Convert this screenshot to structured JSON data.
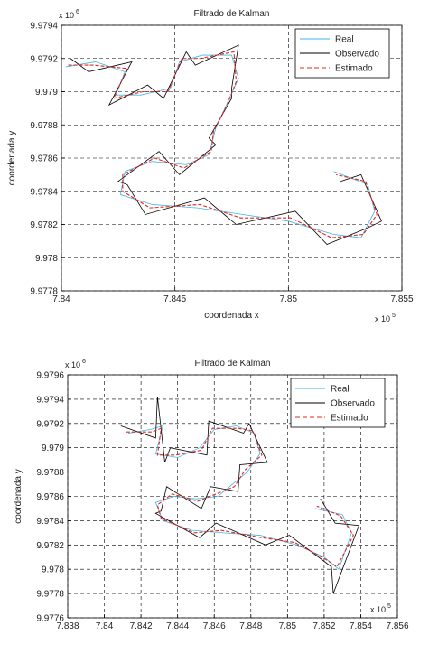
{
  "chart_data": [
    {
      "type": "line",
      "title": "Filtrado de Kalman",
      "xlabel": "coordenada x",
      "ylabel": "coordenada y",
      "x_multiplier": {
        "base": "x 10",
        "exponent": "5"
      },
      "y_multiplier": {
        "base": "x 10",
        "exponent": "6"
      },
      "xlim": [
        7.84,
        7.855
      ],
      "xticks": [
        7.84,
        7.845,
        7.85,
        7.855
      ],
      "ylim": [
        9.9778,
        9.9794
      ],
      "yticks": [
        9.9778,
        9.978,
        9.9782,
        9.9784,
        9.9786,
        9.9788,
        9.979,
        9.9792,
        9.9794
      ],
      "grid": true,
      "legend": "upper right",
      "series": [
        {
          "name": "Real",
          "color": "#3fb6e8",
          "linestyle": "solid",
          "x": [
            7.8402,
            7.8415,
            7.8428,
            7.8424,
            7.8435,
            7.8448,
            7.8452,
            7.8462,
            7.8475,
            7.8478,
            7.8472,
            7.8468,
            7.8465,
            7.8455,
            7.844,
            7.8428,
            7.8426,
            7.844,
            7.846,
            7.848,
            7.85,
            7.852,
            7.8532,
            7.8538,
            7.8535,
            7.852
          ],
          "values": [
            9.97915,
            9.97918,
            9.97912,
            9.97898,
            9.97898,
            9.97902,
            9.97918,
            9.97922,
            9.97922,
            9.97908,
            9.9789,
            9.97878,
            9.97862,
            9.97856,
            9.97858,
            9.97852,
            9.97838,
            9.97832,
            9.9783,
            9.97826,
            9.97822,
            9.97814,
            9.97812,
            9.97828,
            9.97844,
            9.97852
          ]
        },
        {
          "name": "Observado",
          "color": "#000000",
          "linestyle": "solid",
          "x": [
            7.8404,
            7.8412,
            7.8431,
            7.8421,
            7.8438,
            7.8445,
            7.8455,
            7.8459,
            7.8478,
            7.8475,
            7.8475,
            7.8465,
            7.8468,
            7.8452,
            7.8443,
            7.8425,
            7.8429,
            7.8437,
            7.8463,
            7.8477,
            7.8503,
            7.8517,
            7.8535,
            7.8541,
            7.8532,
            7.8523
          ],
          "values": [
            9.9792,
            9.97912,
            9.97918,
            9.97892,
            9.97904,
            9.97896,
            9.97924,
            9.97916,
            9.97928,
            9.97902,
            9.97896,
            9.97872,
            9.97868,
            9.9785,
            9.97864,
            9.97846,
            9.97844,
            9.97826,
            9.97836,
            9.9782,
            9.97828,
            9.97808,
            9.97818,
            9.97822,
            9.9785,
            9.97846
          ]
        },
        {
          "name": "Estimado",
          "color": "#e0281e",
          "linestyle": "dashed",
          "x": [
            7.8403,
            7.8414,
            7.8429,
            7.8423,
            7.8436,
            7.8447,
            7.8453,
            7.8461,
            7.8476,
            7.8477,
            7.8473,
            7.8467,
            7.8466,
            7.8454,
            7.8441,
            7.8427,
            7.8427,
            7.8439,
            7.8461,
            7.8479,
            7.8501,
            7.8519,
            7.8533,
            7.8539,
            7.8534,
            7.8521
          ],
          "values": [
            9.97916,
            9.97916,
            9.97914,
            9.97896,
            9.979,
            9.979,
            9.9792,
            9.9792,
            9.97924,
            9.97906,
            9.97892,
            9.97876,
            9.97864,
            9.97854,
            9.9786,
            9.9785,
            9.9784,
            9.9783,
            9.97832,
            9.97824,
            9.97824,
            9.97812,
            9.97814,
            9.97826,
            9.97846,
            9.9785
          ]
        }
      ]
    },
    {
      "type": "line",
      "title": "Filtrado de Kalman",
      "ylabel": "coordenada y",
      "x_multiplier": {
        "base": "x 10",
        "exponent": "5"
      },
      "y_multiplier": {
        "base": "x 10",
        "exponent": "6"
      },
      "xlim": [
        7.838,
        7.856
      ],
      "xticks": [
        7.838,
        7.84,
        7.842,
        7.844,
        7.846,
        7.848,
        7.85,
        7.852,
        7.854,
        7.856
      ],
      "ylim": [
        9.9776,
        9.9796
      ],
      "yticks": [
        9.9776,
        9.9778,
        9.978,
        9.9782,
        9.9784,
        9.9786,
        9.9788,
        9.979,
        9.9792,
        9.9794,
        9.9796
      ],
      "grid": true,
      "legend": "upper right",
      "series": [
        {
          "name": "Real",
          "color": "#3fb6e8",
          "linestyle": "solid",
          "x": [
            7.8413,
            7.8425,
            7.8432,
            7.8428,
            7.844,
            7.8452,
            7.846,
            7.8472,
            7.8482,
            7.8485,
            7.8478,
            7.847,
            7.8462,
            7.845,
            7.8438,
            7.8428,
            7.8432,
            7.8448,
            7.8465,
            7.8485,
            7.8505,
            7.852,
            7.8528,
            7.8535,
            7.853,
            7.8515
          ],
          "values": [
            9.97912,
            9.97915,
            9.97918,
            9.97895,
            9.97892,
            9.979,
            9.97915,
            9.97918,
            9.97912,
            9.97895,
            9.9788,
            9.9787,
            9.9786,
            9.97858,
            9.9786,
            9.97855,
            9.9784,
            9.97832,
            9.9783,
            9.97828,
            9.9782,
            9.9781,
            9.978,
            9.9783,
            9.97845,
            9.9785
          ]
        },
        {
          "name": "Observado",
          "color": "#000000",
          "linestyle": "solid",
          "x": [
            7.8409,
            7.8428,
            7.8429,
            7.8433,
            7.8436,
            7.8456,
            7.8457,
            7.8476,
            7.8479,
            7.8489,
            7.8474,
            7.8473,
            7.8458,
            7.8453,
            7.8434,
            7.8431,
            7.8428,
            7.8452,
            7.8461,
            7.8488,
            7.8501,
            7.8524,
            7.8525,
            7.8539,
            7.8526,
            7.8518
          ],
          "values": [
            9.97918,
            9.97908,
            9.97942,
            9.97888,
            9.979,
            9.97894,
            9.97922,
            9.97912,
            9.9792,
            9.97888,
            9.97886,
            9.97864,
            9.97868,
            9.9785,
            9.97868,
            9.97848,
            9.97846,
            9.97826,
            9.97838,
            9.9782,
            9.97828,
            9.97802,
            9.9778,
            9.97836,
            9.97838,
            9.97858
          ]
        },
        {
          "name": "Estimado",
          "color": "#e0281e",
          "linestyle": "dashed",
          "x": [
            7.8412,
            7.8426,
            7.8431,
            7.8429,
            7.8439,
            7.8453,
            7.8459,
            7.8473,
            7.8481,
            7.8486,
            7.8477,
            7.8471,
            7.8461,
            7.8451,
            7.8437,
            7.8429,
            7.8431,
            7.8449,
            7.8464,
            7.8486,
            7.8504,
            7.8521,
            7.8527,
            7.8536,
            7.8529,
            7.8516
          ],
          "values": [
            9.97913,
            9.97913,
            9.97916,
            9.97894,
            9.97894,
            9.97898,
            9.97916,
            9.97916,
            9.97914,
            9.97894,
            9.97882,
            9.97868,
            9.97862,
            9.97856,
            9.97862,
            9.97853,
            9.97842,
            9.9783,
            9.97832,
            9.97826,
            9.97822,
            9.97808,
            9.97802,
            9.97828,
            9.97844,
            9.97852
          ]
        }
      ]
    }
  ]
}
